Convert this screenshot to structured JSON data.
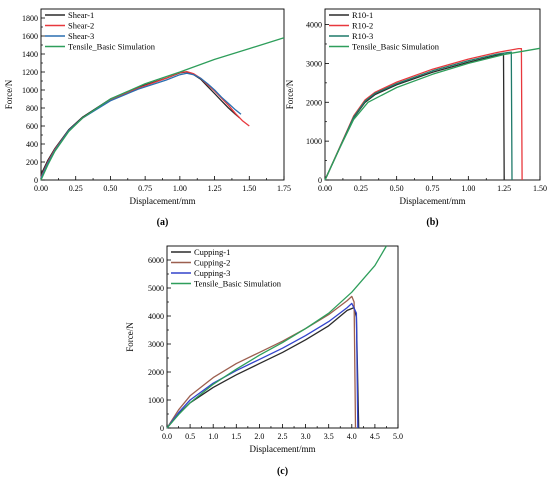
{
  "chart_data": [
    {
      "type": "line",
      "panel_label": "(a)",
      "xlabel": "Displacement/mm",
      "ylabel": "Force/N",
      "xlim": [
        0,
        1.75
      ],
      "ylim": [
        0,
        1900
      ],
      "xticks": [
        0.0,
        0.25,
        0.5,
        0.75,
        1.0,
        1.25,
        1.5,
        1.75
      ],
      "xtick_labels": [
        "0.00",
        "0.25",
        "0.50",
        "0.75",
        "1.00",
        "1.25",
        "1.50",
        "1.75"
      ],
      "yticks": [
        0,
        200,
        400,
        600,
        800,
        1000,
        1200,
        1400,
        1600,
        1800
      ],
      "ytick_labels": [
        "0",
        "200",
        "400",
        "600",
        "800",
        "1000",
        "1200",
        "1400",
        "1600",
        "1800"
      ],
      "grid": false,
      "legend_position": "top-left",
      "series": [
        {
          "name": "Shear-1",
          "color": "#2b2b2b",
          "points": [
            [
              0,
              60
            ],
            [
              0.05,
              220
            ],
            [
              0.1,
              350
            ],
            [
              0.2,
              560
            ],
            [
              0.3,
              700
            ],
            [
              0.5,
              900
            ],
            [
              0.7,
              1030
            ],
            [
              0.9,
              1130
            ],
            [
              1.0,
              1190
            ],
            [
              1.05,
              1200
            ],
            [
              1.1,
              1170
            ],
            [
              1.15,
              1120
            ],
            [
              1.2,
              1040
            ],
            [
              1.25,
              960
            ],
            [
              1.3,
              880
            ],
            [
              1.35,
              800
            ],
            [
              1.4,
              730
            ],
            [
              1.43,
              690
            ]
          ]
        },
        {
          "name": "Shear-2",
          "color": "#e8383d",
          "points": [
            [
              0,
              30
            ],
            [
              0.05,
              200
            ],
            [
              0.1,
              340
            ],
            [
              0.2,
              550
            ],
            [
              0.3,
              690
            ],
            [
              0.5,
              890
            ],
            [
              0.7,
              1020
            ],
            [
              0.9,
              1130
            ],
            [
              1.0,
              1195
            ],
            [
              1.05,
              1205
            ],
            [
              1.1,
              1180
            ],
            [
              1.15,
              1130
            ],
            [
              1.2,
              1060
            ],
            [
              1.25,
              990
            ],
            [
              1.3,
              910
            ],
            [
              1.35,
              830
            ],
            [
              1.4,
              740
            ],
            [
              1.45,
              660
            ],
            [
              1.5,
              600
            ]
          ]
        },
        {
          "name": "Shear-3",
          "color": "#2a6fb0",
          "points": [
            [
              0,
              20
            ],
            [
              0.05,
              190
            ],
            [
              0.1,
              330
            ],
            [
              0.2,
              550
            ],
            [
              0.3,
              690
            ],
            [
              0.5,
              880
            ],
            [
              0.7,
              1010
            ],
            [
              0.9,
              1110
            ],
            [
              1.0,
              1170
            ],
            [
              1.05,
              1185
            ],
            [
              1.1,
              1170
            ],
            [
              1.15,
              1130
            ],
            [
              1.2,
              1070
            ],
            [
              1.25,
              1000
            ],
            [
              1.3,
              920
            ],
            [
              1.35,
              850
            ],
            [
              1.4,
              780
            ],
            [
              1.44,
              730
            ]
          ]
        },
        {
          "name": "Tensile_Basic Simulation",
          "color": "#2e9e5b",
          "points": [
            [
              0,
              0
            ],
            [
              0.05,
              170
            ],
            [
              0.1,
              320
            ],
            [
              0.2,
              540
            ],
            [
              0.3,
              690
            ],
            [
              0.5,
              900
            ],
            [
              0.75,
              1070
            ],
            [
              1.0,
              1200
            ],
            [
              1.25,
              1340
            ],
            [
              1.5,
              1460
            ],
            [
              1.75,
              1580
            ]
          ]
        }
      ]
    },
    {
      "type": "line",
      "panel_label": "(b)",
      "xlabel": "Displacement/mm",
      "ylabel": "Force/N",
      "xlim": [
        0,
        1.5
      ],
      "ylim": [
        0,
        4400
      ],
      "xticks": [
        0.0,
        0.25,
        0.5,
        0.75,
        1.0,
        1.25,
        1.5
      ],
      "xtick_labels": [
        "0.00",
        "0.25",
        "0.50",
        "0.75",
        "1.00",
        "1.25",
        "1.50"
      ],
      "yticks": [
        0,
        1000,
        2000,
        3000,
        4000
      ],
      "ytick_labels": [
        "0",
        "1000",
        "2000",
        "3000",
        "4000"
      ],
      "grid": false,
      "legend_position": "top-left",
      "series": [
        {
          "name": "R10-1",
          "color": "#2b2b2b",
          "points": [
            [
              0,
              0
            ],
            [
              0.1,
              800
            ],
            [
              0.2,
              1600
            ],
            [
              0.28,
              2000
            ],
            [
              0.35,
              2200
            ],
            [
              0.5,
              2450
            ],
            [
              0.75,
              2770
            ],
            [
              1.0,
              3030
            ],
            [
              1.2,
              3210
            ],
            [
              1.245,
              3240
            ],
            [
              1.25,
              0
            ]
          ]
        },
        {
          "name": "R10-2",
          "color": "#e8383d",
          "points": [
            [
              0,
              0
            ],
            [
              0.1,
              820
            ],
            [
              0.2,
              1650
            ],
            [
              0.28,
              2060
            ],
            [
              0.35,
              2260
            ],
            [
              0.5,
              2520
            ],
            [
              0.75,
              2850
            ],
            [
              1.0,
              3110
            ],
            [
              1.2,
              3280
            ],
            [
              1.35,
              3380
            ],
            [
              1.37,
              3380
            ],
            [
              1.375,
              0
            ]
          ]
        },
        {
          "name": "R10-3",
          "color": "#1f7a6a",
          "points": [
            [
              0,
              0
            ],
            [
              0.1,
              810
            ],
            [
              0.2,
              1620
            ],
            [
              0.28,
              2030
            ],
            [
              0.35,
              2230
            ],
            [
              0.5,
              2480
            ],
            [
              0.75,
              2810
            ],
            [
              1.0,
              3070
            ],
            [
              1.2,
              3240
            ],
            [
              1.3,
              3290
            ],
            [
              1.305,
              0
            ]
          ]
        },
        {
          "name": "Tensile_Basic Simulation",
          "color": "#2e9e5b",
          "points": [
            [
              0,
              0
            ],
            [
              0.1,
              800
            ],
            [
              0.2,
              1560
            ],
            [
              0.3,
              2000
            ],
            [
              0.5,
              2380
            ],
            [
              0.75,
              2720
            ],
            [
              1.0,
              3000
            ],
            [
              1.25,
              3230
            ],
            [
              1.5,
              3390
            ]
          ]
        }
      ]
    },
    {
      "type": "line",
      "panel_label": "(c)",
      "xlabel": "Displacement/mm",
      "ylabel": "Force/N",
      "xlim": [
        0,
        5.0
      ],
      "ylim": [
        0,
        6500
      ],
      "xticks": [
        0.0,
        0.5,
        1.0,
        1.5,
        2.0,
        2.5,
        3.0,
        3.5,
        4.0,
        4.5,
        5.0
      ],
      "xtick_labels": [
        "0.0",
        "0.5",
        "1.0",
        "1.5",
        "2.0",
        "2.5",
        "3.0",
        "3.5",
        "4.0",
        "4.5",
        "5.0"
      ],
      "yticks": [
        0,
        1000,
        2000,
        3000,
        4000,
        5000,
        6000
      ],
      "ytick_labels": [
        "0",
        "1000",
        "2000",
        "3000",
        "4000",
        "5000",
        "6000"
      ],
      "grid": false,
      "legend_position": "top-left",
      "series": [
        {
          "name": "Cupping-1",
          "color": "#2b2b2b",
          "points": [
            [
              0,
              0
            ],
            [
              0.25,
              500
            ],
            [
              0.5,
              900
            ],
            [
              1.0,
              1450
            ],
            [
              1.5,
              1900
            ],
            [
              2.0,
              2300
            ],
            [
              2.5,
              2700
            ],
            [
              3.0,
              3150
            ],
            [
              3.5,
              3650
            ],
            [
              3.9,
              4200
            ],
            [
              4.05,
              4300
            ],
            [
              4.1,
              3950
            ],
            [
              4.15,
              0
            ]
          ]
        },
        {
          "name": "Cupping-2",
          "color": "#9c5f4f",
          "points": [
            [
              0,
              0
            ],
            [
              0.25,
              650
            ],
            [
              0.5,
              1150
            ],
            [
              1.0,
              1800
            ],
            [
              1.5,
              2300
            ],
            [
              2.0,
              2700
            ],
            [
              2.5,
              3100
            ],
            [
              3.0,
              3550
            ],
            [
              3.5,
              4050
            ],
            [
              3.9,
              4550
            ],
            [
              4.0,
              4700
            ],
            [
              4.05,
              4500
            ],
            [
              4.08,
              0
            ]
          ]
        },
        {
          "name": "Cupping-3",
          "color": "#3344cc",
          "points": [
            [
              0,
              0
            ],
            [
              0.25,
              550
            ],
            [
              0.5,
              1000
            ],
            [
              1.0,
              1600
            ],
            [
              1.5,
              2050
            ],
            [
              2.0,
              2450
            ],
            [
              2.5,
              2850
            ],
            [
              3.0,
              3300
            ],
            [
              3.5,
              3800
            ],
            [
              3.9,
              4300
            ],
            [
              4.0,
              4450
            ],
            [
              4.1,
              4100
            ],
            [
              4.13,
              0
            ]
          ]
        },
        {
          "name": "Tensile_Basic Simulation",
          "color": "#2e9e5b",
          "points": [
            [
              0,
              0
            ],
            [
              0.25,
              480
            ],
            [
              0.5,
              900
            ],
            [
              1.0,
              1560
            ],
            [
              1.5,
              2100
            ],
            [
              2.0,
              2600
            ],
            [
              2.5,
              3050
            ],
            [
              3.0,
              3550
            ],
            [
              3.5,
              4100
            ],
            [
              4.0,
              4850
            ],
            [
              4.5,
              5800
            ],
            [
              4.75,
              6500
            ]
          ]
        }
      ]
    }
  ]
}
